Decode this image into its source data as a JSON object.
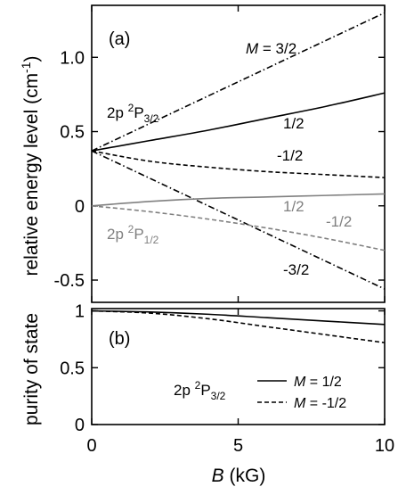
{
  "chart_data": [
    {
      "type": "line",
      "panel_label": "(a)",
      "ylabel_prefix": "relative energy level (cm",
      "ylabel_sup": "-1",
      "ylabel_suffix": ")",
      "xlim": [
        0,
        10
      ],
      "ylim": [
        -0.65,
        1.35
      ],
      "yticks": [
        -0.5,
        0,
        0.5,
        1.0
      ],
      "ytick_labels": [
        "-0.5",
        "0",
        "0.5",
        "1.0"
      ],
      "xticks": [
        0,
        5,
        10
      ],
      "grid": false,
      "annotations": {
        "p32": {
          "base": "2p ",
          "sup": "2",
          "P": "P",
          "sub": "3/2"
        },
        "p12": {
          "base": "2p ",
          "sup": "2",
          "P": "P",
          "sub": "1/2"
        },
        "m_italic": "M",
        "m_eq": " = 3/2"
      },
      "series": [
        {
          "label": "1/2",
          "color": "#000000",
          "dash": "solid",
          "x": [
            0,
            2,
            4,
            6,
            8,
            10
          ],
          "y": [
            0.37,
            0.44,
            0.51,
            0.59,
            0.67,
            0.76
          ]
        },
        {
          "label": "-1/2",
          "color": "#000000",
          "dash": "dash",
          "x": [
            0,
            2,
            4,
            6,
            8,
            10
          ],
          "y": [
            0.37,
            0.3,
            0.26,
            0.23,
            0.21,
            0.19
          ]
        },
        {
          "label": "3/2",
          "color": "#000000",
          "dash": "dashdot",
          "x": [
            0,
            10
          ],
          "y": [
            0.37,
            1.3
          ]
        },
        {
          "label": "-3/2",
          "color": "#000000",
          "dash": "dashdot",
          "x": [
            0,
            10
          ],
          "y": [
            0.37,
            -0.56
          ]
        },
        {
          "label": "1/2",
          "color": "#808080",
          "dash": "solid",
          "x": [
            0,
            2,
            4,
            6,
            8,
            10
          ],
          "y": [
            0.0,
            0.03,
            0.05,
            0.06,
            0.07,
            0.08
          ]
        },
        {
          "label": "-1/2",
          "color": "#808080",
          "dash": "dash",
          "x": [
            0,
            2,
            4,
            6,
            8,
            10
          ],
          "y": [
            0.0,
            -0.04,
            -0.09,
            -0.15,
            -0.22,
            -0.3
          ]
        }
      ]
    },
    {
      "type": "line",
      "panel_label": "(b)",
      "ylabel": "purity of state",
      "xlabel_italic": "B",
      "xlabel_rest": " (kG)",
      "xlim": [
        0,
        10
      ],
      "ylim": [
        0,
        1.02
      ],
      "yticks": [
        0,
        0.5,
        1
      ],
      "ytick_labels": [
        "0",
        "0.5",
        "1"
      ],
      "xticks": [
        0,
        5,
        10
      ],
      "xtick_labels": [
        "0",
        "5",
        "10"
      ],
      "grid": false,
      "annotation": {
        "base": "2p ",
        "sup": "2",
        "P": "P",
        "sub": "3/2"
      },
      "legend": {
        "placement": "bottom-right",
        "entries": [
          {
            "m": "M",
            "text": " = 1/2",
            "dash": "solid"
          },
          {
            "m": "M",
            "text": " = -1/2",
            "dash": "dash"
          }
        ]
      },
      "series": [
        {
          "name": "M = 1/2",
          "color": "#000000",
          "dash": "solid",
          "x": [
            0,
            2,
            4,
            6,
            8,
            10
          ],
          "y": [
            1.0,
            0.99,
            0.97,
            0.94,
            0.91,
            0.88
          ]
        },
        {
          "name": "M = -1/2",
          "color": "#000000",
          "dash": "dash",
          "x": [
            0,
            2,
            4,
            6,
            8,
            10
          ],
          "y": [
            1.0,
            0.98,
            0.93,
            0.86,
            0.79,
            0.72
          ]
        }
      ]
    }
  ]
}
